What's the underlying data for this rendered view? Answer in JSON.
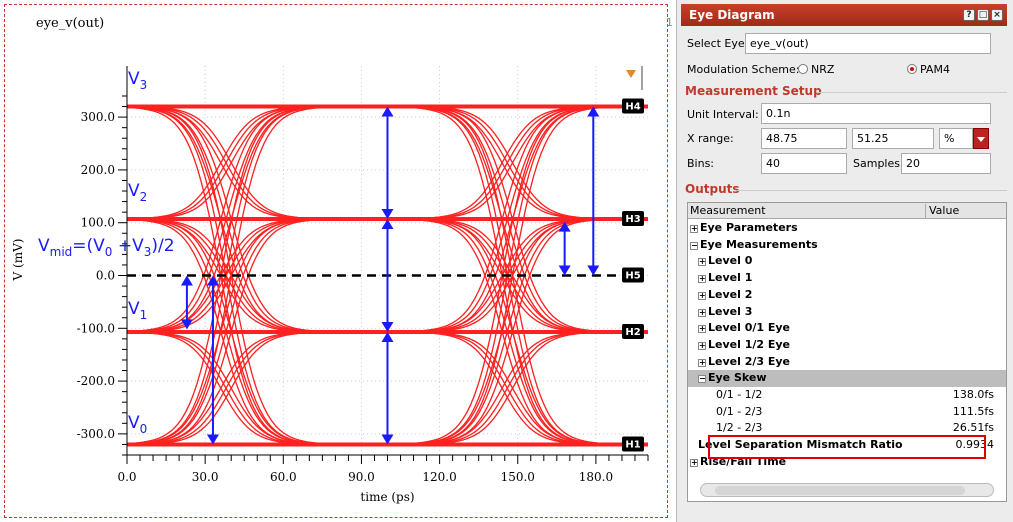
{
  "plot": {
    "title": "eye_v(out)",
    "corner_text": "1",
    "xlabel": "time (ps)",
    "ylabel": "V (mV)",
    "x_ticks": [
      "0.0",
      "30.0",
      "60.0",
      "90.0",
      "120.0",
      "150.0",
      "180.0"
    ],
    "y_ticks": [
      "300.0",
      "200.0",
      "100.0",
      "0.0",
      "-100.0",
      "-200.0",
      "-300.0"
    ],
    "level_labels": {
      "v3": "V",
      "v3_sub": "3",
      "v2": "V",
      "v2_sub": "2",
      "v1": "V",
      "v1_sub": "1",
      "v0": "V",
      "v0_sub": "0",
      "vmid_text": "V",
      "vmid_sub": "mid",
      "vmid_eq": "=(V",
      "vmid_eq_sub0": "0",
      "vmid_eq_mid": " +V",
      "vmid_eq_sub3": "3",
      "vmid_eq_end": ")/2"
    },
    "marker_tags": [
      "H4",
      "H3",
      "H5",
      "H2",
      "H1"
    ],
    "colors": {
      "eye": "#ff2020",
      "arrow": "#1a1aff",
      "midline": "#000000",
      "border": "#cc3333"
    }
  },
  "chart_data": {
    "type": "line",
    "title": "eye_v(out)",
    "xlabel": "time (ps)",
    "ylabel": "V (mV)",
    "xlim": [
      0,
      200
    ],
    "ylim": [
      -340,
      340
    ],
    "levels_mV": [
      -320,
      -107,
      107,
      320
    ],
    "mid_level_mV": 0,
    "transition_centers_ps": [
      38,
      146
    ],
    "unit_interval_ps": 100
  },
  "panel": {
    "title": "Eye Diagram",
    "buttons": [
      "?",
      "□",
      "×"
    ],
    "select_eye_label": "Select Eye:",
    "select_eye_value": "eye_v(out)",
    "modulation_label": "Modulation Scheme:",
    "modulation_options": [
      "NRZ",
      "PAM4"
    ],
    "modulation_selected": "PAM4",
    "measurement_setup_title": "Measurement Setup",
    "unit_interval_label": "Unit Interval:",
    "unit_interval_value": "0.1n",
    "xrange_label": "X range:",
    "xrange_min": "48.75",
    "xrange_max": "51.25",
    "xrange_unit": "%",
    "bins_label": "Bins:",
    "bins_value": "40",
    "samples_label": "Samples:",
    "samples_value": "20",
    "outputs_title": "Outputs",
    "table_headers": [
      "Measurement",
      "Value"
    ],
    "tree": [
      {
        "label": "Eye Parameters",
        "level": 0,
        "expander": "+",
        "bold": true,
        "value": ""
      },
      {
        "label": "Eye Measurements",
        "level": 0,
        "expander": "−",
        "bold": true,
        "value": ""
      },
      {
        "label": "Level 0",
        "level": 1,
        "expander": "+",
        "bold": true,
        "value": ""
      },
      {
        "label": "Level 1",
        "level": 1,
        "expander": "+",
        "bold": true,
        "value": ""
      },
      {
        "label": "Level 2",
        "level": 1,
        "expander": "+",
        "bold": true,
        "value": ""
      },
      {
        "label": "Level 3",
        "level": 1,
        "expander": "+",
        "bold": true,
        "value": ""
      },
      {
        "label": "Level 0/1 Eye",
        "level": 1,
        "expander": "+",
        "bold": true,
        "value": ""
      },
      {
        "label": "Level 1/2 Eye",
        "level": 1,
        "expander": "+",
        "bold": true,
        "value": ""
      },
      {
        "label": "Level 2/3 Eye",
        "level": 1,
        "expander": "+",
        "bold": true,
        "value": ""
      },
      {
        "label": "Eye Skew",
        "level": 1,
        "expander": "−",
        "bold": true,
        "value": "",
        "selected": true
      },
      {
        "label": "0/1 - 1/2",
        "level": 2,
        "expander": "",
        "bold": false,
        "value": "138.0fs"
      },
      {
        "label": "0/1 - 2/3",
        "level": 2,
        "expander": "",
        "bold": false,
        "value": "111.5fs"
      },
      {
        "label": "1/2 - 2/3",
        "level": 2,
        "expander": "",
        "bold": false,
        "value": "26.51fs"
      },
      {
        "label": "Level Separation Mismatch Ratio",
        "level": 1,
        "expander": "",
        "bold": true,
        "value": "0.9934"
      },
      {
        "label": "Rise/Fall Time",
        "level": 0,
        "expander": "+",
        "bold": true,
        "value": ""
      }
    ],
    "scrollbar_grip": "|||"
  }
}
